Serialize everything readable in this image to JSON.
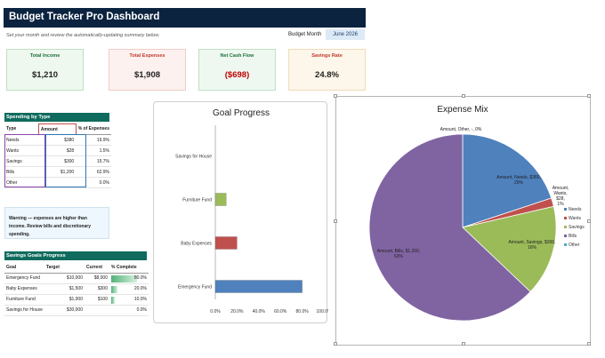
{
  "header": {
    "title": "Budget Tracker Pro Dashboard",
    "subtitle": "Set your month and review the automatically-updating summary below.",
    "budget_month_label": "Budget Month",
    "budget_month_value": "June 2026"
  },
  "kpis": [
    {
      "label": "Total Income",
      "value": "$1,210",
      "label_color": "#1f6f3a",
      "bg": "#eef8ef",
      "border": "#bfe0c3",
      "value_color": "#222"
    },
    {
      "label": "Total Expenses",
      "value": "$1,908",
      "label_color": "#c0392b",
      "bg": "#fdf1ef",
      "border": "#f0cfc8",
      "value_color": "#222"
    },
    {
      "label": "Net Cash Flow",
      "value": "($698)",
      "label_color": "#1f6f3a",
      "bg": "#eef8f1",
      "border": "#bfe0c3",
      "value_color": "#c00000"
    },
    {
      "label": "Savings Rate",
      "value": "24.8%",
      "label_color": "#c0392b",
      "bg": "#fdf6ea",
      "border": "#f1dcb8",
      "value_color": "#222"
    }
  ],
  "spending": {
    "title": "Spending by Type",
    "headers": [
      "Type",
      "Amount",
      "% of Expenses"
    ],
    "rows": [
      [
        "Needs",
        "$380",
        "19.9%"
      ],
      [
        "Wants",
        "$28",
        "1.5%"
      ],
      [
        "Savings",
        "$300",
        "15.7%"
      ],
      [
        "Bills",
        "$1,200",
        "62.9%"
      ],
      [
        "Other",
        "",
        "0.0%"
      ]
    ]
  },
  "warning": "Warning — expenses are higher than income. Review bills and discretionary spending.",
  "goals": {
    "title": "Savings Goals Progress",
    "headers": [
      "Goal",
      "Target",
      "Current",
      "% Complete"
    ],
    "rows": [
      {
        "goal": "Emergency Fund",
        "target": "$10,000",
        "current": "$8,000",
        "pct": "80.0%",
        "frac": 0.8
      },
      {
        "goal": "Baby Expenses",
        "target": "$1,500",
        "current": "$300",
        "pct": "20.0%",
        "frac": 0.2
      },
      {
        "goal": "Furniture Fund",
        "target": "$1,000",
        "current": "$100",
        "pct": "10.0%",
        "frac": 0.1
      },
      {
        "goal": "Savings for House",
        "target": "$30,000",
        "current": "",
        "pct": "0.0%",
        "frac": 0.0
      }
    ]
  },
  "chart_data": [
    {
      "type": "bar",
      "orientation": "horizontal",
      "title": "Goal Progress",
      "categories": [
        "Savings for House",
        "Furniture Fund",
        "Baby Expenses",
        "Emergency Fund"
      ],
      "values": [
        0,
        10,
        20,
        80
      ],
      "colors": [
        "#4f81bd",
        "#9bbb59",
        "#c0504d",
        "#4f81bd"
      ],
      "x_ticks": [
        "0.0%",
        "20.0%",
        "40.0%",
        "60.0%",
        "80.0%",
        "100.0%"
      ],
      "xlim": [
        0,
        100
      ],
      "grid": false,
      "legend": "none"
    },
    {
      "type": "pie",
      "title": "Expense Mix",
      "slices": [
        {
          "name": "Needs",
          "value": 380,
          "color": "#4f81bd",
          "label": "Amount, Needs, $380, 20%"
        },
        {
          "name": "Wants",
          "value": 28,
          "color": "#c0504d",
          "label": "Amount, Wants, $28, 1%"
        },
        {
          "name": "Savings",
          "value": 300,
          "color": "#9bbb59",
          "label": "Amount, Savings, $300, 16%"
        },
        {
          "name": "Bills",
          "value": 1200,
          "color": "#8064a2",
          "label": "Amount, Bills, $1,200, 63%"
        },
        {
          "name": "Other",
          "value": 0,
          "color": "#4bacc6",
          "label": "Amount, Other, -, 0%"
        }
      ],
      "legend": "right"
    }
  ]
}
